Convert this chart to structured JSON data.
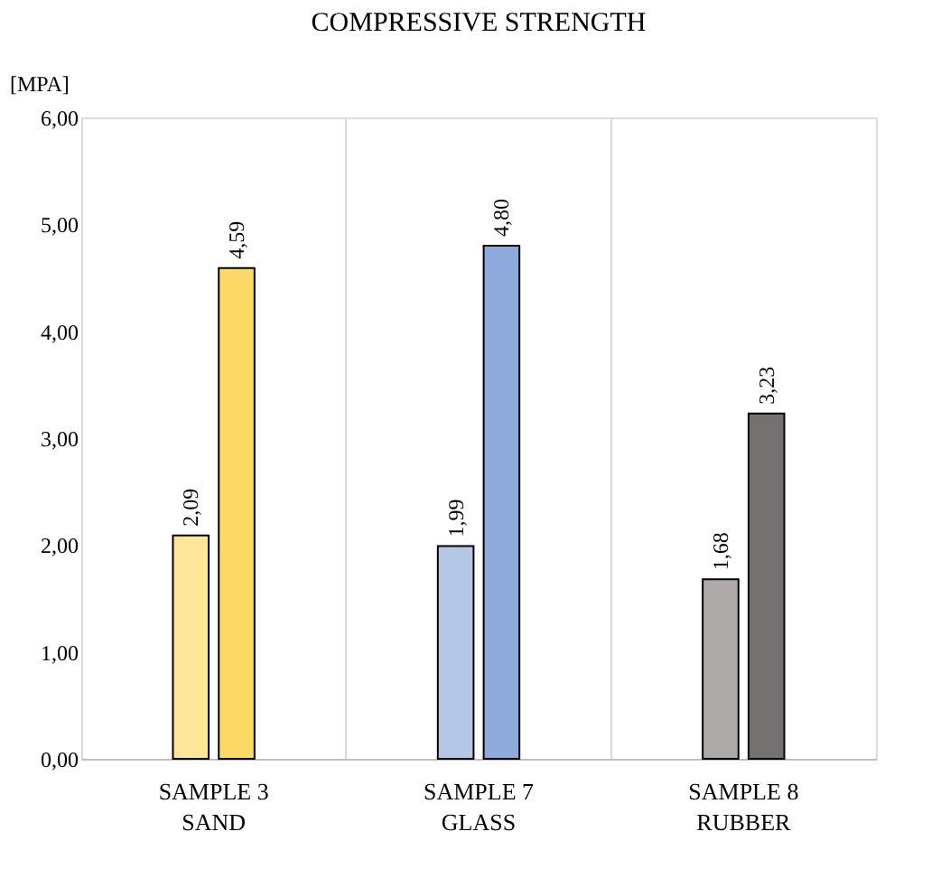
{
  "chart_data": {
    "type": "bar",
    "title": "COMPRESSIVE STRENGTH",
    "ylabel": "[MPA]",
    "categories": [
      "SAMPLE 3 SAND",
      "SAMPLE 7 GLASS",
      "SAMPLE 8 RUBBER"
    ],
    "series": [
      {
        "colors": [
          "#ffe699",
          "#b4c7e7",
          "#aeaaaa"
        ],
        "values": [
          2.09,
          1.99,
          1.68
        ],
        "value_labels": [
          "2,09",
          "1,99",
          "1,68"
        ]
      },
      {
        "colors": [
          "#ffd966",
          "#8faadc",
          "#767171"
        ],
        "values": [
          4.59,
          4.8,
          3.23
        ],
        "value_labels": [
          "4,59",
          "4,80",
          "3,23"
        ]
      }
    ],
    "ylim": [
      0,
      6
    ],
    "yticks": [
      {
        "value": 0,
        "label": "0,00"
      },
      {
        "value": 1,
        "label": "1,00"
      },
      {
        "value": 2,
        "label": "2,00"
      },
      {
        "value": 3,
        "label": "3,00"
      },
      {
        "value": 4,
        "label": "4,00"
      },
      {
        "value": 5,
        "label": "5,00"
      },
      {
        "value": 6,
        "label": "6,00"
      }
    ],
    "grid": "x"
  }
}
